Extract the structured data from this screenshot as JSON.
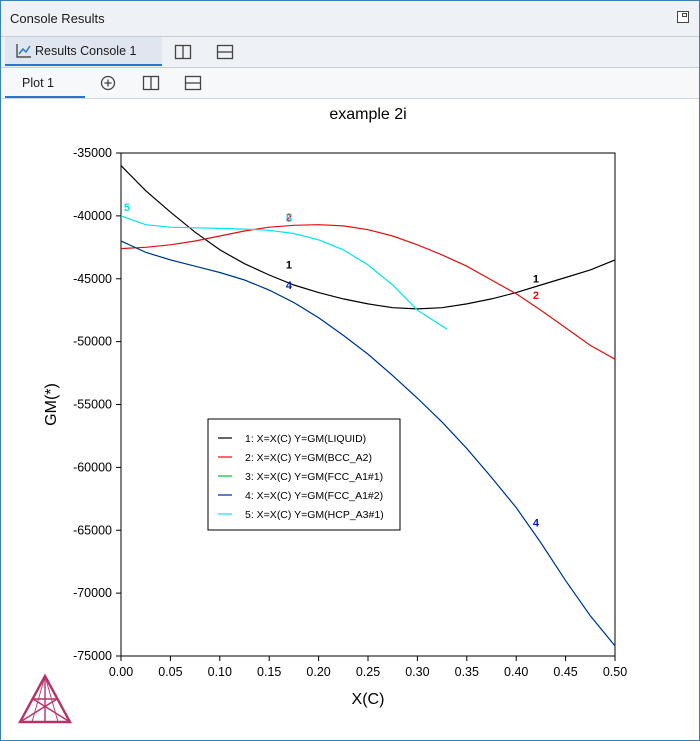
{
  "window": {
    "title": "Console Results"
  },
  "tabs": {
    "console_tab": {
      "label": "Results Console 1"
    },
    "plot_tab": {
      "label": "Plot 1"
    }
  },
  "icons": {
    "maximize": "maximize-icon",
    "chart": "line-chart-icon",
    "split_vertical": "split-vertical-icon",
    "split_horizontal": "split-horizontal-icon",
    "add": "add-plot-icon",
    "logo": "thermo-calc-logo"
  },
  "chart_data": {
    "type": "line",
    "title": "example 2i",
    "xlabel": "X(C)",
    "ylabel": "GM(*)",
    "xlim": [
      0,
      0.5
    ],
    "ylim": [
      -75000,
      -35000
    ],
    "x_ticks": [
      "0.00",
      "0.05",
      "0.10",
      "0.15",
      "0.20",
      "0.25",
      "0.30",
      "0.35",
      "0.40",
      "0.45",
      "0.50"
    ],
    "y_ticks": [
      "-35000",
      "-40000",
      "-45000",
      "-50000",
      "-55000",
      "-60000",
      "-65000",
      "-70000",
      "-75000"
    ],
    "legend_position": "center-left",
    "series": [
      {
        "id": "1",
        "name": "1:  X=X(C)  Y=GM(LIQUID)",
        "color": "#000000",
        "x": [
          0.0,
          0.025,
          0.05,
          0.075,
          0.1,
          0.125,
          0.15,
          0.175,
          0.2,
          0.225,
          0.25,
          0.275,
          0.3,
          0.325,
          0.35,
          0.375,
          0.4,
          0.425,
          0.45,
          0.475,
          0.5
        ],
        "y": [
          -36000,
          -38000,
          -39700,
          -41300,
          -42700,
          -43800,
          -44700,
          -45500,
          -46100,
          -46600,
          -47000,
          -47300,
          -47400,
          -47300,
          -47000,
          -46600,
          -46100,
          -45500,
          -44900,
          -44300,
          -43500
        ],
        "labels": [
          {
            "x": 0.17,
            "y": -44200,
            "text": "1"
          },
          {
            "x": 0.42,
            "y": -45300,
            "text": "1"
          }
        ]
      },
      {
        "id": "2",
        "name": "2:  X=X(C)  Y=GM(BCC_A2)",
        "color": "#e01010",
        "x": [
          0.0,
          0.025,
          0.05,
          0.075,
          0.1,
          0.125,
          0.15,
          0.175,
          0.2,
          0.225,
          0.25,
          0.275,
          0.3,
          0.325,
          0.35,
          0.375,
          0.4,
          0.425,
          0.45,
          0.475,
          0.5
        ],
        "y": [
          -42600,
          -42500,
          -42300,
          -42000,
          -41600,
          -41200,
          -40900,
          -40750,
          -40700,
          -40800,
          -41100,
          -41600,
          -42300,
          -43100,
          -44000,
          -45100,
          -46200,
          -47500,
          -48900,
          -50300,
          -51400
        ],
        "labels": [
          {
            "x": 0.17,
            "y": -40400,
            "text": "2"
          },
          {
            "x": 0.42,
            "y": -46600,
            "text": "2"
          }
        ]
      },
      {
        "id": "3",
        "name": "3:  X=X(C)  Y=GM(FCC_A1#1)",
        "color": "#00c030",
        "x": [
          0.0,
          0.025,
          0.05,
          0.075,
          0.1,
          0.125,
          0.15,
          0.175,
          0.2,
          0.225,
          0.25,
          0.275,
          0.3,
          0.325,
          0.35,
          0.375,
          0.4,
          0.425,
          0.45,
          0.475,
          0.5
        ],
        "y": [
          -42000,
          -42900,
          -43500,
          -44000,
          -44500,
          -45100,
          -45900,
          -46900,
          -48100,
          -49500,
          -51000,
          -52700,
          -54500,
          -56400,
          -58500,
          -60800,
          -63200,
          -66000,
          -69000,
          -71800,
          -74200
        ],
        "labels": []
      },
      {
        "id": "4",
        "name": "4:  X=X(C)  Y=GM(FCC_A1#2)",
        "color": "#0020b0",
        "x": [
          0.0,
          0.025,
          0.05,
          0.075,
          0.1,
          0.125,
          0.15,
          0.175,
          0.2,
          0.225,
          0.25,
          0.275,
          0.3,
          0.325,
          0.35,
          0.375,
          0.4,
          0.425,
          0.45,
          0.475,
          0.5
        ],
        "y": [
          -42000,
          -42900,
          -43500,
          -44000,
          -44500,
          -45100,
          -45900,
          -46900,
          -48100,
          -49500,
          -51000,
          -52700,
          -54500,
          -56400,
          -58500,
          -60800,
          -63200,
          -66000,
          -69000,
          -71800,
          -74200
        ],
        "labels": [
          {
            "x": 0.17,
            "y": -45800,
            "text": "4"
          },
          {
            "x": 0.42,
            "y": -64700,
            "text": "4"
          }
        ]
      },
      {
        "id": "5",
        "name": "5:  X=X(C)  Y=GM(HCP_A3#1)",
        "color": "#00e5e5",
        "x": [
          0.0,
          0.025,
          0.05,
          0.075,
          0.1,
          0.125,
          0.15,
          0.175,
          0.2,
          0.225,
          0.25,
          0.275,
          0.3,
          0.31,
          0.33
        ],
        "y": [
          -40000,
          -40700,
          -40900,
          -40950,
          -41000,
          -41050,
          -41150,
          -41400,
          -41900,
          -42700,
          -43900,
          -45500,
          -47500,
          -48000,
          -49000
        ],
        "labels": [
          {
            "x": 0.006,
            "y": -39600,
            "text": "5"
          },
          {
            "x": 0.17,
            "y": -40500,
            "text": "5"
          }
        ]
      }
    ]
  }
}
